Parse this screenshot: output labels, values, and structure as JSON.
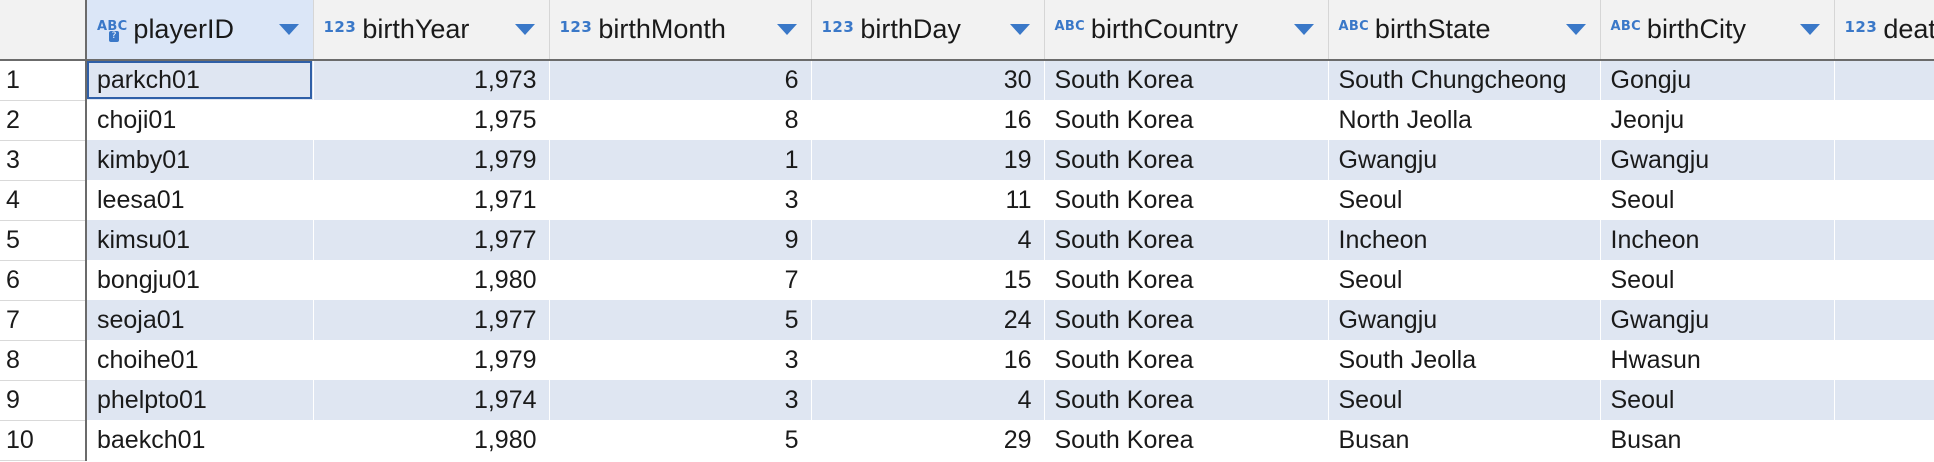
{
  "columns": [
    {
      "type": "ABC",
      "name": "playerID"
    },
    {
      "type": "123",
      "name": "birthYear"
    },
    {
      "type": "123",
      "name": "birthMonth"
    },
    {
      "type": "123",
      "name": "birthDay"
    },
    {
      "type": "ABC",
      "name": "birthCountry"
    },
    {
      "type": "ABC",
      "name": "birthState"
    },
    {
      "type": "ABC",
      "name": "birthCity"
    },
    {
      "type": "123",
      "name": "deat"
    }
  ],
  "rows": [
    {
      "num": "1",
      "playerID": "parkch01",
      "birthYear": "1,973",
      "birthMonth": "6",
      "birthDay": "30",
      "birthCountry": "South Korea",
      "birthState": "South Chungcheong",
      "birthCity": "Gongju"
    },
    {
      "num": "2",
      "playerID": "choji01",
      "birthYear": "1,975",
      "birthMonth": "8",
      "birthDay": "16",
      "birthCountry": "South Korea",
      "birthState": "North Jeolla",
      "birthCity": "Jeonju"
    },
    {
      "num": "3",
      "playerID": "kimby01",
      "birthYear": "1,979",
      "birthMonth": "1",
      "birthDay": "19",
      "birthCountry": "South Korea",
      "birthState": "Gwangju",
      "birthCity": "Gwangju"
    },
    {
      "num": "4",
      "playerID": "leesa01",
      "birthYear": "1,971",
      "birthMonth": "3",
      "birthDay": "11",
      "birthCountry": "South Korea",
      "birthState": "Seoul",
      "birthCity": "Seoul"
    },
    {
      "num": "5",
      "playerID": "kimsu01",
      "birthYear": "1,977",
      "birthMonth": "9",
      "birthDay": "4",
      "birthCountry": "South Korea",
      "birthState": "Incheon",
      "birthCity": "Incheon"
    },
    {
      "num": "6",
      "playerID": "bongju01",
      "birthYear": "1,980",
      "birthMonth": "7",
      "birthDay": "15",
      "birthCountry": "South Korea",
      "birthState": "Seoul",
      "birthCity": "Seoul"
    },
    {
      "num": "7",
      "playerID": "seoja01",
      "birthYear": "1,977",
      "birthMonth": "5",
      "birthDay": "24",
      "birthCountry": "South Korea",
      "birthState": "Gwangju",
      "birthCity": "Gwangju"
    },
    {
      "num": "8",
      "playerID": "choihe01",
      "birthYear": "1,979",
      "birthMonth": "3",
      "birthDay": "16",
      "birthCountry": "South Korea",
      "birthState": "South Jeolla",
      "birthCity": "Hwasun"
    },
    {
      "num": "9",
      "playerID": "phelpto01",
      "birthYear": "1,974",
      "birthMonth": "3",
      "birthDay": "4",
      "birthCountry": "South Korea",
      "birthState": "Seoul",
      "birthCity": "Seoul"
    },
    {
      "num": "10",
      "playerID": "baekch01",
      "birthYear": "1,980",
      "birthMonth": "5",
      "birthDay": "29",
      "birthCountry": "South Korea",
      "birthState": "Busan",
      "birthCity": "Busan"
    }
  ],
  "icons": {
    "key": "key-icon",
    "sort": "chevron-down-icon"
  },
  "colors": {
    "accent": "#3a78c8",
    "row_stripe": "#dfe6f2",
    "selected_header": "#dbe6f7"
  }
}
